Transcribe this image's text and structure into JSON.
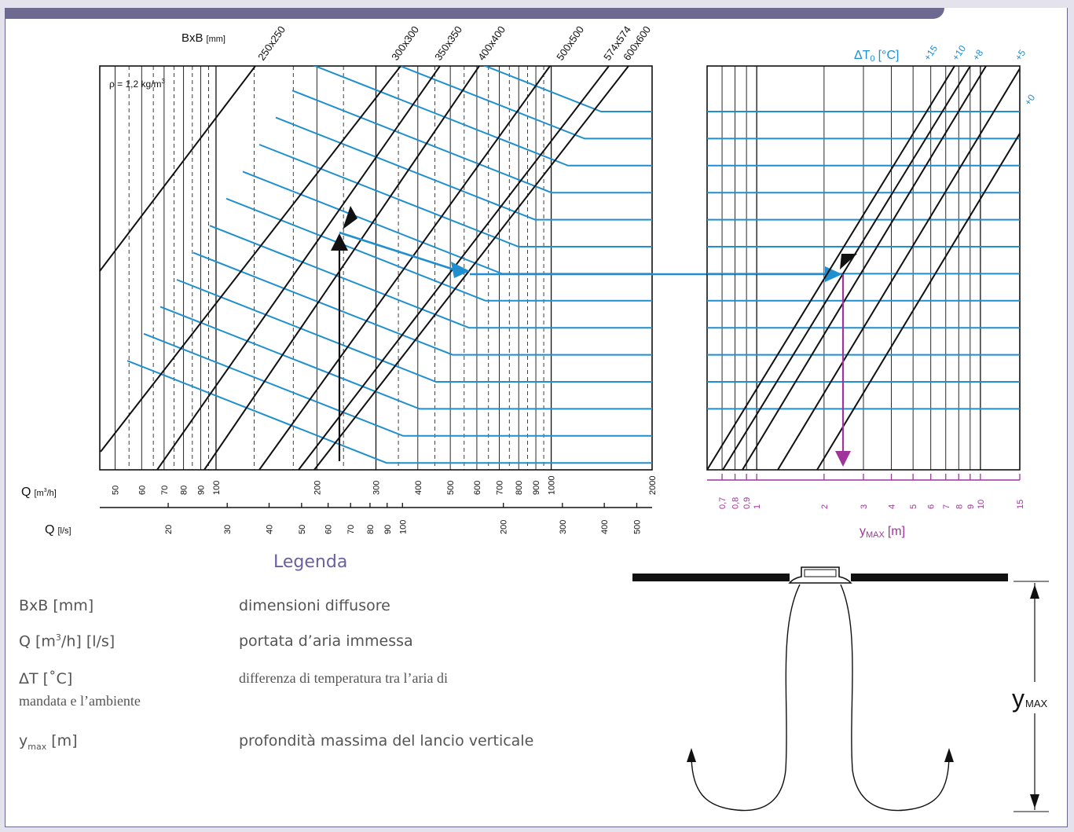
{
  "chart_data": {
    "type": "line",
    "left_panel": {
      "density_label": "ρ = 1,2 kg/m",
      "density_exp": "3",
      "top_axis_label": "BxB",
      "top_axis_unit": "[mm]",
      "size_lines": [
        "250x250",
        "300x300",
        "350x350",
        "400x400",
        "500x500",
        "574x574",
        "600x600"
      ],
      "q_m3h_label": "Q",
      "q_m3h_unit_pre": "[m",
      "q_m3h_unit_exp": "3",
      "q_m3h_unit_post": "/h]",
      "q_m3h_ticks": [
        "50",
        "60",
        "70",
        "80",
        "90",
        "100",
        "200",
        "300",
        "400",
        "500",
        "600",
        "700",
        "800",
        "900",
        "1000",
        "2000"
      ],
      "q_m3h_range": [
        45,
        2000
      ],
      "q_ls_label": "Q",
      "q_ls_unit": "[l/s]",
      "q_ls_ticks": [
        "20",
        "30",
        "40",
        "50",
        "60",
        "70",
        "80",
        "90",
        "100",
        "200",
        "300",
        "400",
        "500"
      ],
      "example_q_m3h": 250
    },
    "right_panel": {
      "dt_label": "ΔT",
      "dt_sub": "0",
      "dt_unit": "[°C]",
      "dt_lines": [
        "+15",
        "+10",
        "+8",
        "+5",
        "+0"
      ],
      "ymax_label": "y",
      "ymax_sub": "MAX",
      "ymax_unit": "[m]",
      "ymax_ticks": [
        "0,7",
        "0,8",
        "0,9",
        "1",
        "2",
        "3",
        "4",
        "5",
        "6",
        "7",
        "8",
        "9",
        "10",
        "15"
      ],
      "ymax_range": [
        0.6,
        15
      ],
      "example_ymax": 2.65
    },
    "colors": {
      "blue": "#1f8fd0",
      "magenta": "#a0349a",
      "black": "#111111"
    }
  },
  "legend": {
    "title": "Legenda",
    "rows": [
      {
        "key": "BxB [mm]",
        "value": "dimensioni diffusore"
      },
      {
        "key_pre": "Q [m",
        "key_exp": "3",
        "key_post": "/h] [l/s]",
        "value": "portata d’aria immessa"
      },
      {
        "key": "ΔT [˚C]",
        "value": "differenza di temperatura tra l’aria di",
        "value_cont": "mandata e l’ambiente"
      },
      {
        "key_main": "y",
        "key_sub": "max",
        "key_post": " [m]",
        "value": "profondità massima del lancio verticale"
      }
    ]
  },
  "diagram": {
    "ymax_main": "y",
    "ymax_sub": "MAX"
  }
}
